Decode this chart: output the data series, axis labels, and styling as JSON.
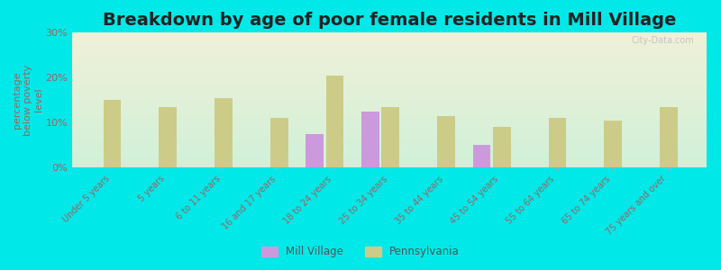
{
  "title": "Breakdown by age of poor female residents in Mill Village",
  "ylabel": "percentage\nbelow poverty\nlevel",
  "categories": [
    "Under 5 years",
    "5 years",
    "6 to 11 years",
    "16 and 17 years",
    "18 to 24 years",
    "25 to 34 years",
    "35 to 44 years",
    "45 to 54 years",
    "55 to 64 years",
    "65 to 74 years",
    "75 years and over"
  ],
  "mill_village": [
    null,
    null,
    null,
    null,
    7.5,
    12.5,
    null,
    5.0,
    null,
    null,
    null
  ],
  "pennsylvania": [
    15.0,
    13.5,
    15.5,
    11.0,
    20.5,
    13.5,
    11.5,
    9.0,
    11.0,
    10.5,
    13.5
  ],
  "mill_village_color": "#cc99dd",
  "pennsylvania_color": "#cccc88",
  "outer_background": "#00e8e8",
  "ylim": [
    0,
    30
  ],
  "yticks": [
    0,
    10,
    20,
    30
  ],
  "ytick_labels": [
    "0%",
    "10%",
    "20%",
    "30%"
  ],
  "title_fontsize": 14,
  "tick_label_fontsize": 7,
  "ylabel_fontsize": 8,
  "tick_color": "#996666",
  "watermark": "City-Data.com"
}
